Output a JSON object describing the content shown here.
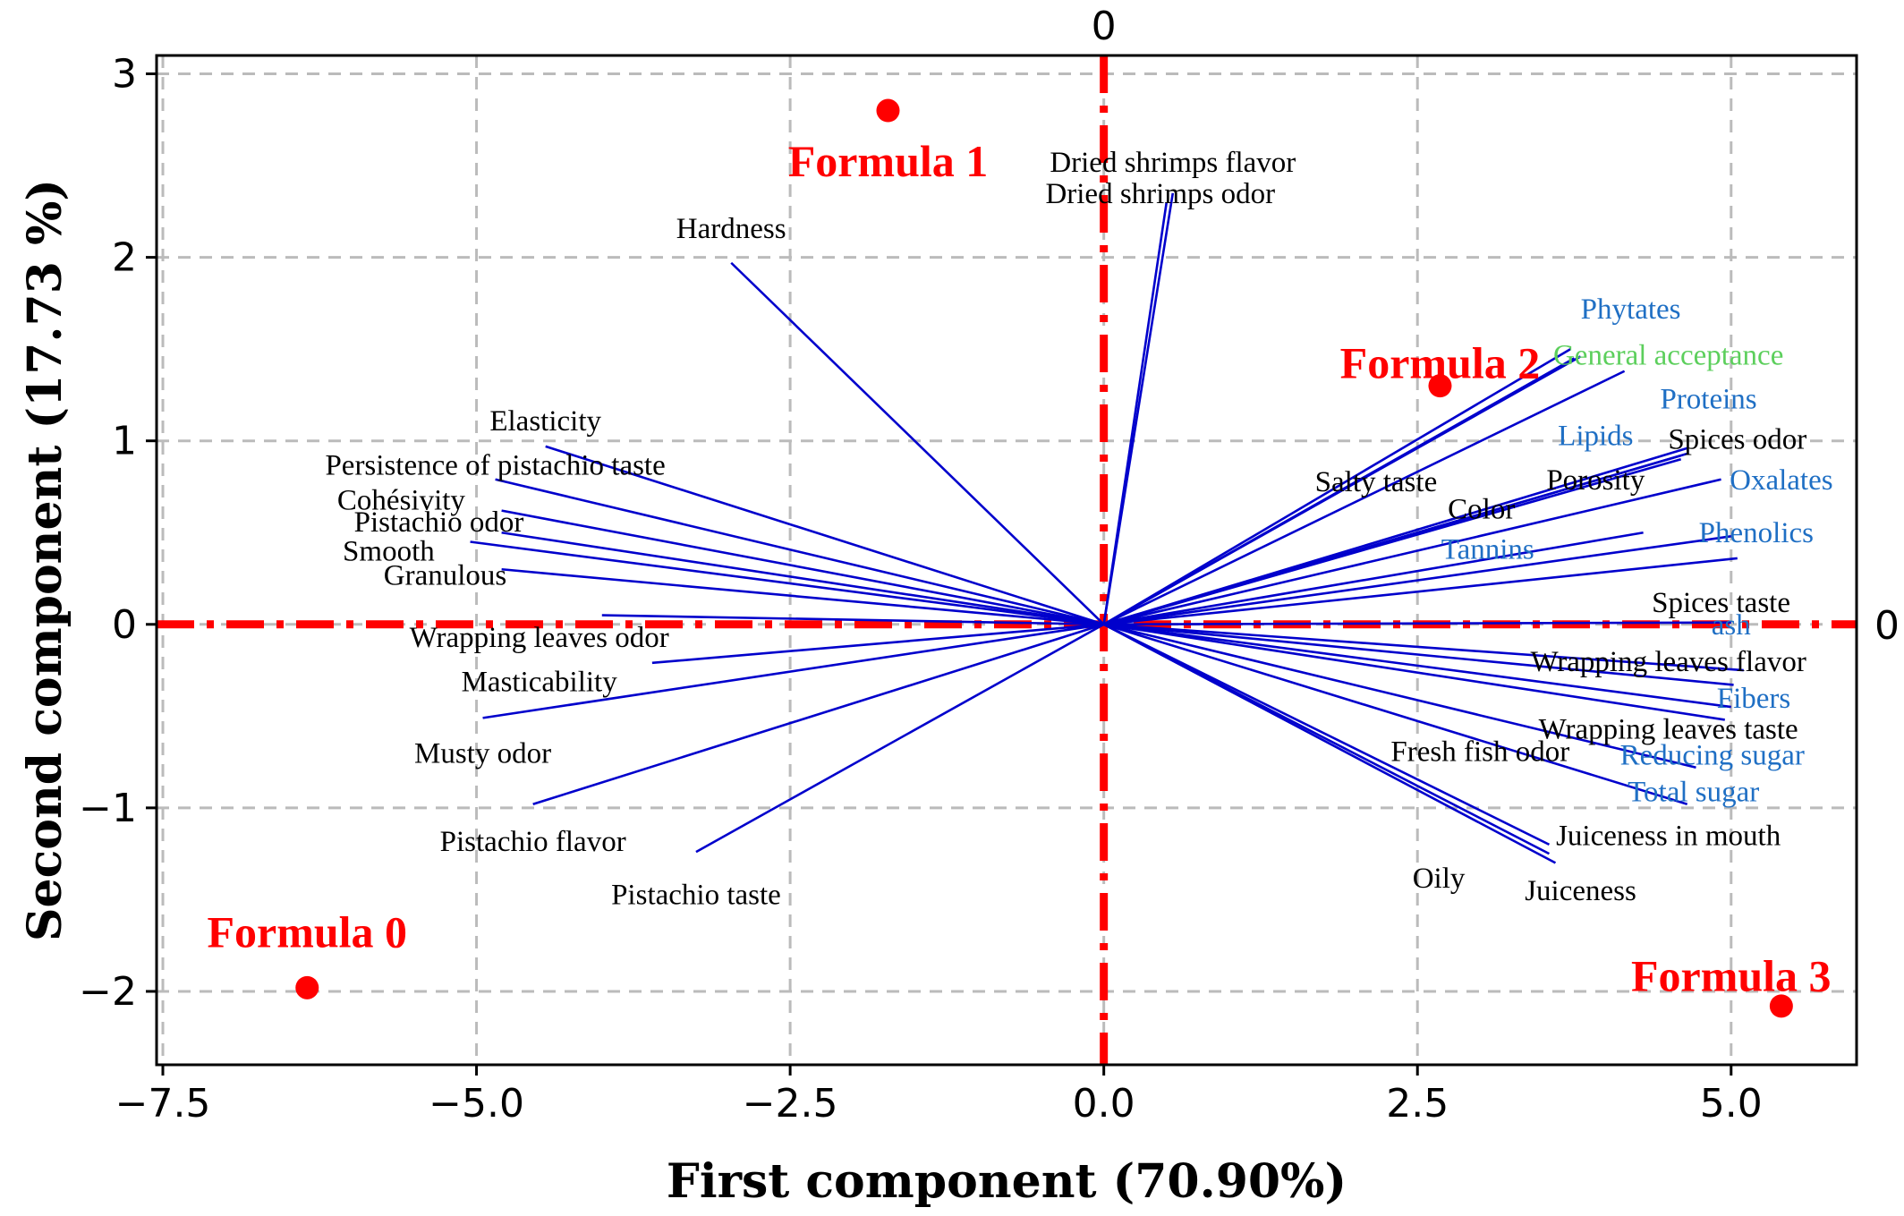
{
  "chart_data": {
    "type": "scatter",
    "subtype": "pca-biplot",
    "xlabel": "First component (70.90%)",
    "ylabel": "Second component (17.73 %)",
    "xlim": [
      -7.55,
      6.0
    ],
    "ylim": [
      -2.4,
      3.1
    ],
    "x_ticks": [
      -7.5,
      -5.0,
      -2.5,
      0.0,
      2.5,
      5.0
    ],
    "x_tick_labels": [
      "−7.5",
      "−5.0",
      "−2.5",
      "0.0",
      "2.5",
      "5.0"
    ],
    "y_ticks": [
      -2,
      -1,
      0,
      1,
      2,
      3
    ],
    "y_tick_labels": [
      "−2",
      "−1",
      "0",
      "1",
      "2",
      "3"
    ],
    "grid": true,
    "reference_lines": {
      "vertical_label": "0",
      "horizontal_label": "0",
      "color": "#ff0000"
    },
    "colors": {
      "vector": "#0000cc",
      "sensory_label": "#000000",
      "chemical_label": "#1f6fc4",
      "acceptance_label": "#5ccf5c",
      "observation": "#ff0000",
      "grid": "#bbbbbb"
    },
    "observations": [
      {
        "name": "Formula 0",
        "x": -6.35,
        "y": -1.98
      },
      {
        "name": "Formula 1",
        "x": -1.72,
        "y": 2.8
      },
      {
        "name": "Formula 2",
        "x": 2.68,
        "y": 1.3
      },
      {
        "name": "Formula 3",
        "x": 5.4,
        "y": -2.08
      }
    ],
    "variables": [
      {
        "name": "Dried shrimps flavor",
        "x": 0.55,
        "y": 2.35,
        "group": "sensory",
        "lx": 0.55,
        "ly": 2.52
      },
      {
        "name": "Dried shrimps odor",
        "x": 0.5,
        "y": 2.3,
        "group": "sensory",
        "lx": 0.45,
        "ly": 2.35
      },
      {
        "name": "Hardness",
        "x": -2.97,
        "y": 1.97,
        "group": "sensory",
        "lx": -2.97,
        "ly": 2.16
      },
      {
        "name": "Elasticity",
        "x": -4.45,
        "y": 0.97,
        "group": "sensory",
        "lx": -4.45,
        "ly": 1.11
      },
      {
        "name": "Persistence of pistachio taste",
        "x": -4.85,
        "y": 0.79,
        "group": "sensory",
        "lx": -4.85,
        "ly": 0.87
      },
      {
        "name": "Cohésivity",
        "x": -4.8,
        "y": 0.62,
        "group": "sensory",
        "lx": -5.6,
        "ly": 0.68
      },
      {
        "name": "Pistachio odor",
        "x": -4.8,
        "y": 0.5,
        "group": "sensory",
        "lx": -5.3,
        "ly": 0.56
      },
      {
        "name": "Smooth",
        "x": -5.05,
        "y": 0.45,
        "group": "sensory",
        "lx": -5.7,
        "ly": 0.4
      },
      {
        "name": "Granulous",
        "x": -4.8,
        "y": 0.3,
        "group": "sensory",
        "lx": -5.25,
        "ly": 0.27
      },
      {
        "name": "Wrapping leaves odor",
        "x": -4.0,
        "y": 0.05,
        "group": "sensory",
        "lx": -4.5,
        "ly": -0.07
      },
      {
        "name": "Masticability",
        "x": -3.6,
        "y": -0.21,
        "group": "sensory",
        "lx": -4.5,
        "ly": -0.31
      },
      {
        "name": "Musty odor",
        "x": -4.95,
        "y": -0.51,
        "group": "sensory",
        "lx": -4.95,
        "ly": -0.7
      },
      {
        "name": "Pistachio flavor",
        "x": -4.55,
        "y": -0.98,
        "group": "sensory",
        "lx": -4.55,
        "ly": -1.18
      },
      {
        "name": "Pistachio taste",
        "x": -3.25,
        "y": -1.24,
        "group": "sensory",
        "lx": -3.25,
        "ly": -1.47
      },
      {
        "name": "Phytates",
        "x": 3.72,
        "y": 1.5,
        "group": "chemical",
        "lx": 4.2,
        "ly": 1.72
      },
      {
        "name": "General acceptance",
        "x": 4.15,
        "y": 1.38,
        "group": "acceptance",
        "lx": 4.5,
        "ly": 1.47
      },
      {
        "name": "Proteins",
        "x": 4.65,
        "y": 0.96,
        "group": "chemical",
        "lx": 4.82,
        "ly": 1.23
      },
      {
        "name": "Lipids",
        "x": 4.6,
        "y": 0.92,
        "group": "chemical",
        "lx": 3.92,
        "ly": 1.03
      },
      {
        "name": "Spices odor",
        "x": 4.65,
        "y": 0.93,
        "group": "sensory",
        "lx": 5.05,
        "ly": 1.01
      },
      {
        "name": "Salty taste",
        "x": 3.75,
        "y": 1.45,
        "group": "sensory",
        "lx": 2.17,
        "ly": 0.78
      },
      {
        "name": "Porosity",
        "x": 4.6,
        "y": 0.9,
        "group": "sensory",
        "lx": 3.92,
        "ly": 0.79
      },
      {
        "name": "Color",
        "x": 3.8,
        "y": 1.46,
        "group": "sensory",
        "lx": 3.01,
        "ly": 0.63
      },
      {
        "name": "Oxalates",
        "x": 4.92,
        "y": 0.79,
        "group": "chemical",
        "lx": 5.4,
        "ly": 0.79
      },
      {
        "name": "Tannins",
        "x": 4.3,
        "y": 0.5,
        "group": "chemical",
        "lx": 3.06,
        "ly": 0.41
      },
      {
        "name": "Phenolics",
        "x": 5.0,
        "y": 0.48,
        "group": "chemical",
        "lx": 5.2,
        "ly": 0.5
      },
      {
        "name": "Spices taste",
        "x": 5.05,
        "y": 0.36,
        "group": "sensory",
        "lx": 4.92,
        "ly": 0.12
      },
      {
        "name": "ash",
        "x": 5.0,
        "y": 0.01,
        "group": "chemical",
        "lx": 5.0,
        "ly": 0.0
      },
      {
        "name": "Wrapping leaves flavor",
        "x": 5.1,
        "y": -0.25,
        "group": "sensory",
        "lx": 4.5,
        "ly": -0.2
      },
      {
        "name": "Fibers",
        "x": 5.02,
        "y": -0.33,
        "group": "chemical",
        "lx": 5.18,
        "ly": -0.4
      },
      {
        "name": "Wrapping leaves taste",
        "x": 5.0,
        "y": -0.45,
        "group": "sensory",
        "lx": 4.5,
        "ly": -0.57
      },
      {
        "name": "Reducing sugar",
        "x": 4.95,
        "y": -0.52,
        "group": "chemical",
        "lx": 4.85,
        "ly": -0.71
      },
      {
        "name": "Total sugar",
        "x": 4.72,
        "y": -0.78,
        "group": "chemical",
        "lx": 4.7,
        "ly": -0.91
      },
      {
        "name": "Fresh fish odor",
        "x": 3.55,
        "y": -1.2,
        "group": "sensory",
        "lx": 3.0,
        "ly": -0.69
      },
      {
        "name": "Juiceness in mouth",
        "x": 4.65,
        "y": -0.98,
        "group": "sensory",
        "lx": 4.5,
        "ly": -1.15
      },
      {
        "name": "Oily",
        "x": 3.55,
        "y": -1.25,
        "group": "sensory",
        "lx": 2.67,
        "ly": -1.38
      },
      {
        "name": "Juiceness",
        "x": 3.6,
        "y": -1.3,
        "group": "sensory",
        "lx": 3.8,
        "ly": -1.45
      }
    ]
  }
}
